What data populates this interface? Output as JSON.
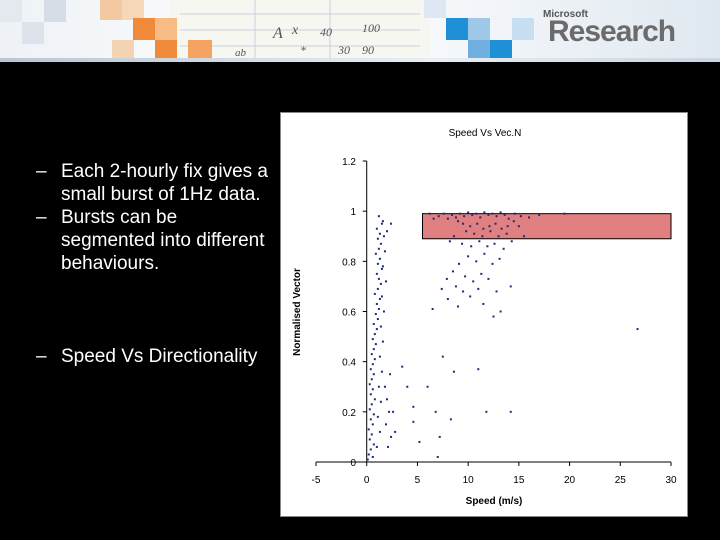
{
  "header": {
    "logo_small": "Microsoft",
    "logo_big": "Research",
    "sketch_text": [
      "A",
      "x",
      "40",
      "100",
      "90",
      "*",
      "30",
      "ab"
    ]
  },
  "bullets": [
    "Each 2-hourly fix gives a small burst of 1Hz data.",
    "Bursts can be segmented into different behaviours.",
    "Speed Vs Directionality"
  ],
  "bullet_dash": "–",
  "chart_data": {
    "type": "scatter",
    "title": "Speed Vs Vec.N",
    "xlabel": "Speed (m/s)",
    "ylabel": "Normalised Vector",
    "xlim": [
      -5,
      30
    ],
    "ylim": [
      0,
      1.2
    ],
    "xticks": [
      "-5",
      "0",
      "5",
      "10",
      "15",
      "20",
      "25",
      "30"
    ],
    "yticks": [
      "0",
      "0.2",
      "0.4",
      "0.6",
      "0.8",
      "1",
      "1.2"
    ],
    "grid": false,
    "point_color": "#1f2a7a",
    "highlight": {
      "x": [
        5.5,
        30
      ],
      "y": [
        0.89,
        0.99
      ],
      "fill": "#e08080",
      "stroke": "#000000"
    },
    "series": [
      {
        "values": [
          [
            1.2,
            0.98
          ],
          [
            1.5,
            0.95
          ],
          [
            1.0,
            0.93
          ],
          [
            1.3,
            0.91
          ],
          [
            1.1,
            0.89
          ],
          [
            1.4,
            0.87
          ],
          [
            1.2,
            0.85
          ],
          [
            0.9,
            0.83
          ],
          [
            1.3,
            0.81
          ],
          [
            1.1,
            0.79
          ],
          [
            1.5,
            0.77
          ],
          [
            1.0,
            0.75
          ],
          [
            1.2,
            0.73
          ],
          [
            1.4,
            0.71
          ],
          [
            1.1,
            0.69
          ],
          [
            0.8,
            0.67
          ],
          [
            1.3,
            0.65
          ],
          [
            1.0,
            0.63
          ],
          [
            1.2,
            0.61
          ],
          [
            0.9,
            0.59
          ],
          [
            1.1,
            0.57
          ],
          [
            0.7,
            0.55
          ],
          [
            1.0,
            0.53
          ],
          [
            0.8,
            0.51
          ],
          [
            0.6,
            0.49
          ],
          [
            0.9,
            0.47
          ],
          [
            0.7,
            0.45
          ],
          [
            0.5,
            0.43
          ],
          [
            0.8,
            0.41
          ],
          [
            0.6,
            0.39
          ],
          [
            0.4,
            0.37
          ],
          [
            0.7,
            0.35
          ],
          [
            0.5,
            0.33
          ],
          [
            0.3,
            0.31
          ],
          [
            0.6,
            0.29
          ],
          [
            0.4,
            0.27
          ],
          [
            0.8,
            0.25
          ],
          [
            0.5,
            0.23
          ],
          [
            0.3,
            0.21
          ],
          [
            0.7,
            0.19
          ],
          [
            0.4,
            0.17
          ],
          [
            0.6,
            0.15
          ],
          [
            0.2,
            0.13
          ],
          [
            0.5,
            0.11
          ],
          [
            0.3,
            0.09
          ],
          [
            0.7,
            0.07
          ],
          [
            0.4,
            0.05
          ],
          [
            0.2,
            0.03
          ],
          [
            0.6,
            0.02
          ],
          [
            0.1,
            0.01
          ],
          [
            1.6,
            0.96
          ],
          [
            1.7,
            0.9
          ],
          [
            1.8,
            0.84
          ],
          [
            1.6,
            0.78
          ],
          [
            1.9,
            0.72
          ],
          [
            1.5,
            0.66
          ],
          [
            1.7,
            0.6
          ],
          [
            1.4,
            0.54
          ],
          [
            1.6,
            0.48
          ],
          [
            1.3,
            0.42
          ],
          [
            1.5,
            0.36
          ],
          [
            1.2,
            0.3
          ],
          [
            1.4,
            0.24
          ],
          [
            1.1,
            0.18
          ],
          [
            1.3,
            0.12
          ],
          [
            1.0,
            0.06
          ],
          [
            1.8,
            0.3
          ],
          [
            2.0,
            0.25
          ],
          [
            2.2,
            0.2
          ],
          [
            1.9,
            0.15
          ],
          [
            2.4,
            0.1
          ],
          [
            2.1,
            0.06
          ],
          [
            2.6,
            0.2
          ],
          [
            2.3,
            0.35
          ],
          [
            2.8,
            0.12
          ],
          [
            3.5,
            0.38
          ],
          [
            4.0,
            0.3
          ],
          [
            4.6,
            0.22
          ],
          [
            5.2,
            0.08
          ],
          [
            7.0,
            0.02
          ],
          [
            2.0,
            0.92
          ],
          [
            2.4,
            0.95
          ],
          [
            6.2,
            0.99
          ],
          [
            6.6,
            0.97
          ],
          [
            7.1,
            0.98
          ],
          [
            7.6,
            0.99
          ],
          [
            8.0,
            0.97
          ],
          [
            8.4,
            0.985
          ],
          [
            8.8,
            0.975
          ],
          [
            9.2,
            0.99
          ],
          [
            9.6,
            0.98
          ],
          [
            10.0,
            0.995
          ],
          [
            10.4,
            0.985
          ],
          [
            10.8,
            0.99
          ],
          [
            11.2,
            0.975
          ],
          [
            11.6,
            0.995
          ],
          [
            12.0,
            0.985
          ],
          [
            12.4,
            0.99
          ],
          [
            12.8,
            0.98
          ],
          [
            13.2,
            0.995
          ],
          [
            13.6,
            0.985
          ],
          [
            14.0,
            0.97
          ],
          [
            14.6,
            0.99
          ],
          [
            15.2,
            0.98
          ],
          [
            16.0,
            0.975
          ],
          [
            17.0,
            0.985
          ],
          [
            19.5,
            0.99
          ],
          [
            9.0,
            0.96
          ],
          [
            9.5,
            0.95
          ],
          [
            10.2,
            0.94
          ],
          [
            10.9,
            0.95
          ],
          [
            11.5,
            0.93
          ],
          [
            12.1,
            0.94
          ],
          [
            12.7,
            0.95
          ],
          [
            13.3,
            0.93
          ],
          [
            13.9,
            0.94
          ],
          [
            14.5,
            0.96
          ],
          [
            15.0,
            0.94
          ],
          [
            9.8,
            0.92
          ],
          [
            10.6,
            0.91
          ],
          [
            11.4,
            0.9
          ],
          [
            12.2,
            0.92
          ],
          [
            13.0,
            0.9
          ],
          [
            13.8,
            0.91
          ],
          [
            8.6,
            0.9
          ],
          [
            8.2,
            0.88
          ],
          [
            9.4,
            0.87
          ],
          [
            10.3,
            0.86
          ],
          [
            11.1,
            0.88
          ],
          [
            11.9,
            0.86
          ],
          [
            12.6,
            0.87
          ],
          [
            13.5,
            0.85
          ],
          [
            14.3,
            0.88
          ],
          [
            15.5,
            0.9
          ],
          [
            10.0,
            0.82
          ],
          [
            10.8,
            0.8
          ],
          [
            11.6,
            0.83
          ],
          [
            12.4,
            0.79
          ],
          [
            13.1,
            0.81
          ],
          [
            9.1,
            0.79
          ],
          [
            8.5,
            0.76
          ],
          [
            9.7,
            0.74
          ],
          [
            10.5,
            0.72
          ],
          [
            11.3,
            0.75
          ],
          [
            12.0,
            0.73
          ],
          [
            7.9,
            0.73
          ],
          [
            7.4,
            0.69
          ],
          [
            8.8,
            0.7
          ],
          [
            9.5,
            0.68
          ],
          [
            10.2,
            0.66
          ],
          [
            11.0,
            0.69
          ],
          [
            12.8,
            0.68
          ],
          [
            14.2,
            0.7
          ],
          [
            8.0,
            0.65
          ],
          [
            9.0,
            0.62
          ],
          [
            11.5,
            0.63
          ],
          [
            12.5,
            0.58
          ],
          [
            13.2,
            0.6
          ],
          [
            6.5,
            0.61
          ],
          [
            26.7,
            0.53
          ],
          [
            7.5,
            0.42
          ],
          [
            8.6,
            0.36
          ],
          [
            11.0,
            0.37
          ],
          [
            6.0,
            0.3
          ],
          [
            6.8,
            0.2
          ],
          [
            8.3,
            0.17
          ],
          [
            11.8,
            0.2
          ],
          [
            14.2,
            0.2
          ],
          [
            7.2,
            0.1
          ],
          [
            4.6,
            0.16
          ]
        ]
      }
    ]
  }
}
